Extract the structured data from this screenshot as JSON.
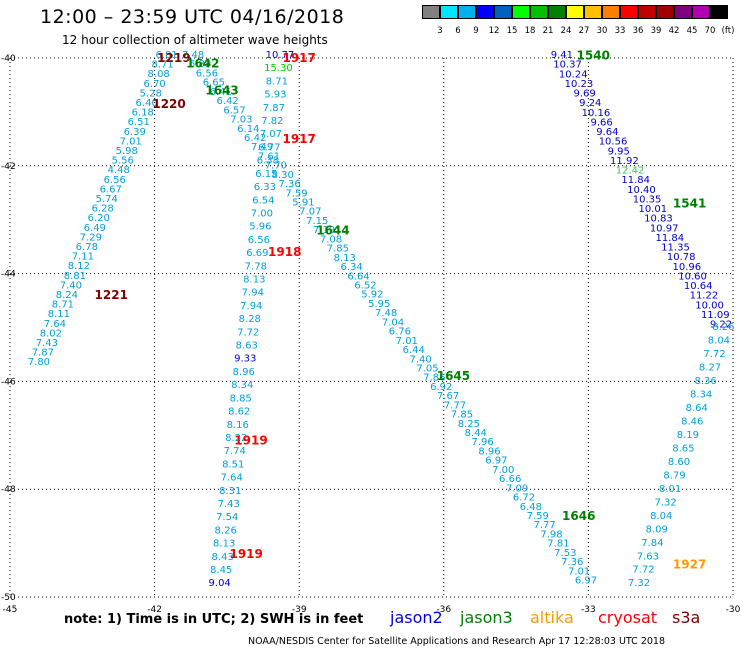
{
  "header": {
    "title": "12:00 – 23:59 UTC 04/16/2018",
    "subtitle": "12 hour collection of altimeter wave heights"
  },
  "color_scale": {
    "labels": [
      "3",
      "6",
      "9",
      "12",
      "15",
      "18",
      "21",
      "24",
      "27",
      "30",
      "33",
      "36",
      "39",
      "42",
      "45",
      "70",
      "(ft)"
    ],
    "colors": [
      "#808080",
      "#00e5ff",
      "#00b0f0",
      "#0000ff",
      "#0060c0",
      "#00ff00",
      "#00c000",
      "#008000",
      "#ffff00",
      "#ffc000",
      "#ff8000",
      "#ff0000",
      "#c00000",
      "#a00000",
      "#800080",
      "#b000b0",
      "#000000"
    ]
  },
  "axes": {
    "lon_labels": [
      "-45",
      "-42",
      "-39",
      "-36",
      "-33",
      "-30"
    ],
    "lat_labels": [
      "-40",
      "-42",
      "-44",
      "-46",
      "-48",
      "-50"
    ],
    "lon_range": [
      -45,
      -30
    ],
    "lat_range": [
      -50,
      -40
    ],
    "grid": true
  },
  "footer": {
    "note": "note:  1) Time is in UTC;  2) SWH is in feet",
    "credit": "NOAA/NESDIS Center for Satellite Applications and Research    Apr 17 12:28:03 UTC 2018"
  },
  "satellites": [
    {
      "name": "jason2",
      "color": "#0000dd"
    },
    {
      "name": "jason3",
      "color": "#008000"
    },
    {
      "name": "altika",
      "color": "#ff9900"
    },
    {
      "name": "cryosat",
      "color": "#ff0000"
    },
    {
      "name": "s3a",
      "color": "#800000"
    }
  ],
  "time_labels": [
    {
      "text": "1219",
      "lon": -41.6,
      "lat": -40.0,
      "color": "#800000"
    },
    {
      "text": "1642",
      "lon": -41.0,
      "lat": -40.1,
      "color": "#008000"
    },
    {
      "text": "1917",
      "lon": -39.0,
      "lat": -40.0,
      "color": "#ff0000"
    },
    {
      "text": "1643",
      "lon": -40.6,
      "lat": -40.6,
      "color": "#008000"
    },
    {
      "text": "1220",
      "lon": -41.7,
      "lat": -40.85,
      "color": "#800000"
    },
    {
      "text": "1917",
      "lon": -39.0,
      "lat": -41.5,
      "color": "#ff0000"
    },
    {
      "text": "1644",
      "lon": -38.3,
      "lat": -43.2,
      "color": "#008000"
    },
    {
      "text": "1918",
      "lon": -39.3,
      "lat": -43.6,
      "color": "#ff0000"
    },
    {
      "text": "1221",
      "lon": -42.9,
      "lat": -44.4,
      "color": "#800000"
    },
    {
      "text": "1645",
      "lon": -35.8,
      "lat": -45.9,
      "color": "#008000"
    },
    {
      "text": "1919",
      "lon": -40.0,
      "lat": -47.1,
      "color": "#ff0000"
    },
    {
      "text": "1646",
      "lon": -33.2,
      "lat": -48.5,
      "color": "#008000"
    },
    {
      "text": "1919",
      "lon": -40.1,
      "lat": -49.2,
      "color": "#ff0000"
    },
    {
      "text": "1540",
      "lon": -32.9,
      "lat": -39.95,
      "color": "#008000"
    },
    {
      "text": "1541",
      "lon": -30.9,
      "lat": -42.7,
      "color": "#008000"
    },
    {
      "text": "1927",
      "lon": -30.9,
      "lat": -49.4,
      "color": "#ff9900"
    }
  ],
  "tracks": [
    {
      "name": "s3a-1219",
      "color": "#00a0d8",
      "start": [
        -41.75,
        -40.0
      ],
      "end": [
        -44.4,
        -45.7
      ],
      "values": [
        "6.81",
        "8.71",
        "8.08",
        "6.70",
        "5.28",
        "6.40",
        "6.18",
        "6.51",
        "6.39",
        "7.01",
        "5.98",
        "5.56",
        "4.48",
        "6.56",
        "6.67",
        "5.74",
        "6.28",
        "6.20",
        "6.49",
        "7.29",
        "6.78",
        "7.11",
        "8.12",
        "8.81",
        "7.40",
        "8.24",
        "8.71",
        "8.11",
        "7.64",
        "8.02",
        "7.43",
        "7.87",
        "7.80"
      ]
    },
    {
      "name": "jason3-1642",
      "color": "#00a0d8",
      "start": [
        -41.2,
        -40.0
      ],
      "end": [
        -33.05,
        -49.75
      ],
      "values": [
        "7.48",
        "6.89",
        "6.56",
        "6.65",
        "6.41",
        "6.42",
        "6.57",
        "7.03",
        "6.14",
        "6.42",
        "7.49",
        "7.61",
        "7.70",
        "8.30",
        "7.36",
        "7.59",
        "5.91",
        "7.07",
        "7.15",
        "7.19",
        "7.08",
        "7.85",
        "8.13",
        "6.34",
        "6.64",
        "6.52",
        "5.92",
        "5.95",
        "7.48",
        "7.04",
        "6.76",
        "7.01",
        "6.44",
        "7.40",
        "7.05",
        "7.86",
        "6.92",
        "7.67",
        "7.77",
        "7.85",
        "8.25",
        "8.44",
        "7.96",
        "8.96",
        "6.97",
        "7.00",
        "6.66",
        "7.09",
        "6.72",
        "6.48",
        "7.59",
        "7.77",
        "7.98",
        "7.81",
        "7.53",
        "7.36",
        "7.01",
        "6.97"
      ]
    },
    {
      "name": "cryosat-1917",
      "color": "#00a0d8",
      "start": [
        -39.4,
        -40.0
      ],
      "end": [
        -40.65,
        -49.8
      ],
      "values": [
        "10.77",
        "15.30",
        "8.71",
        "5.93",
        "7.87",
        "7.82",
        "7.07",
        "6.77",
        "6.38",
        "6.15",
        "6.33",
        "6.54",
        "7.00",
        "5.96",
        "6.56",
        "6.69",
        "7.78",
        "8.13",
        "7.94",
        "7.94",
        "8.28",
        "7.72",
        "8.63",
        "9.33",
        "8.96",
        "8.34",
        "8.85",
        "8.62",
        "8.16",
        "8.22",
        "7.74",
        "8.51",
        "7.64",
        "8.31",
        "7.43",
        "7.54",
        "8.26",
        "8.13",
        "8.43",
        "8.45",
        "9.04"
      ]
    },
    {
      "name": "jason2-1540",
      "color": "#0000cc",
      "start": [
        -33.55,
        -40.0
      ],
      "end": [
        -30.25,
        -45.0
      ],
      "values": [
        "9.41",
        "10.37",
        "10.24",
        "10.23",
        "9.69",
        "9.24",
        "10.16",
        "9.66",
        "9.64",
        "10.56",
        "9.95",
        "11.92",
        "12.42",
        "11.84",
        "10.40",
        "10.35",
        "10.01",
        "10.83",
        "10.97",
        "11.84",
        "11.35",
        "10.78",
        "10.96",
        "10.60",
        "10.64",
        "11.22",
        "10.00",
        "11.09",
        "9.22"
      ]
    },
    {
      "name": "altika-1927",
      "color": "#00a0d8",
      "start": [
        -30.2,
        -45.05
      ],
      "end": [
        -31.95,
        -49.8
      ],
      "values": [
        "8.26",
        "8.04",
        "7.72",
        "8.27",
        "8.36",
        "8.34",
        "8.64",
        "8.46",
        "8.19",
        "8.65",
        "8.60",
        "8.79",
        "8.01",
        "7.32",
        "8.04",
        "8.09",
        "7.84",
        "7.63",
        "7.72",
        "7.32"
      ]
    }
  ]
}
